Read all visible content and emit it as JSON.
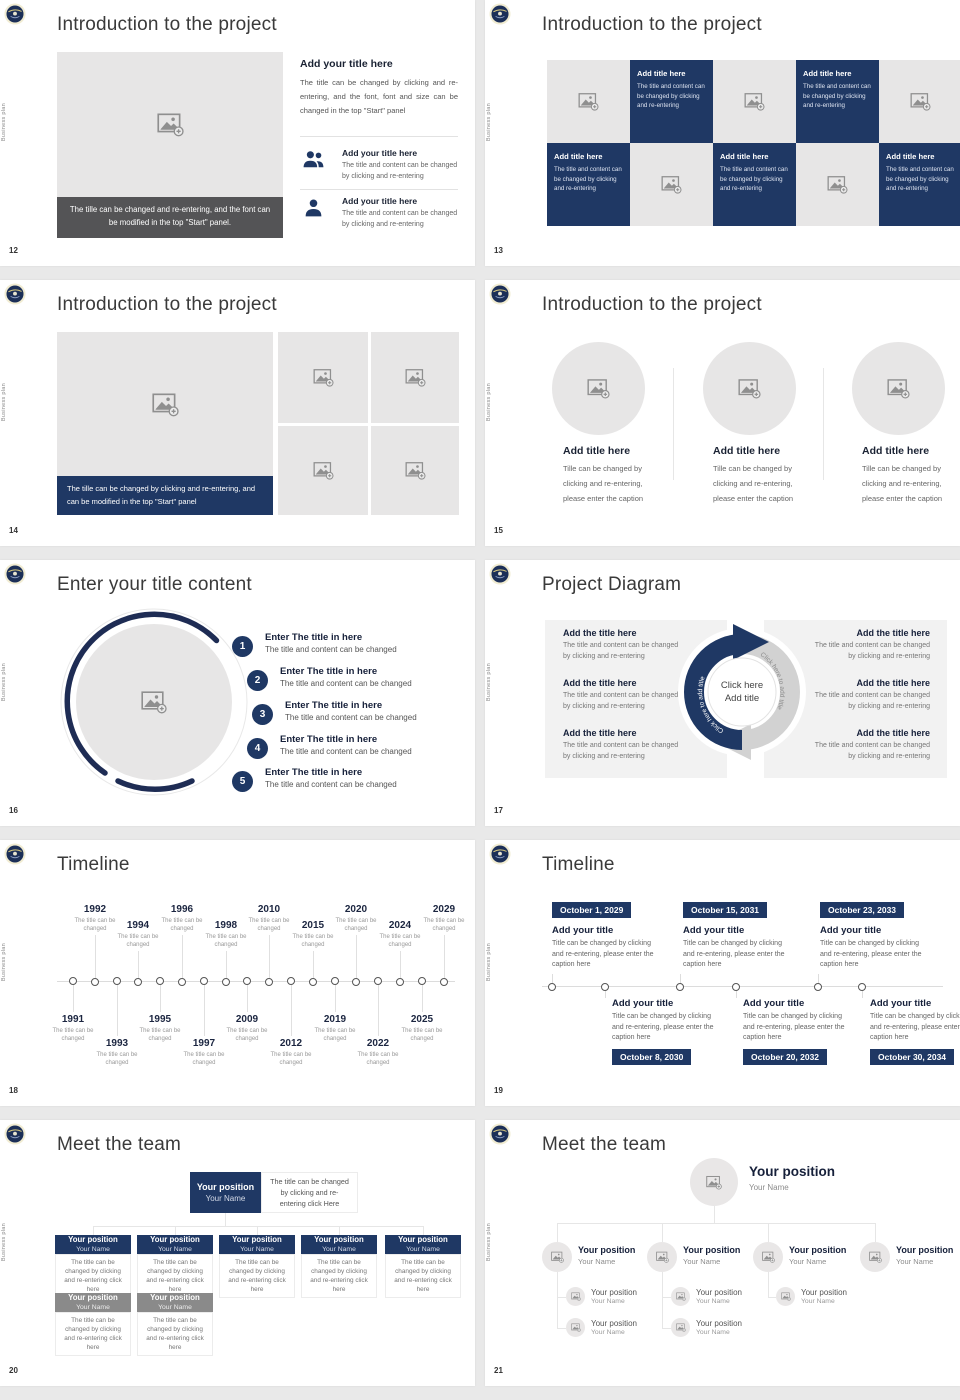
{
  "chrome": {
    "sidebar_label": "Business plan"
  },
  "slides": {
    "s12": {
      "number": "12",
      "title": "Introduction to the project",
      "image_caption": "The tille can be changed and re-entering, and the font can be modified in the top \"Start\" panel.",
      "heading": "Add your title here",
      "body": "The title can be changed by clicking and re-entering, and the font, font and size can be changed in the top \"Start\" panel",
      "items": [
        {
          "heading": "Add your title here",
          "body": "The title and content can be changed by clicking and re-entering"
        },
        {
          "heading": "Add your title here",
          "body": "The title and content can be changed by clicking and re-entering"
        }
      ]
    },
    "s13": {
      "number": "13",
      "title": "Introduction to the project",
      "cell_heading": "Add title here",
      "cell_body": "The title and content can be changed by clicking and re-entering"
    },
    "s14": {
      "number": "14",
      "title": "Introduction to the project",
      "image_caption": "The tille can be changed by clicking and re-entering, and can be modified in the top \"Start\" panel"
    },
    "s15": {
      "number": "15",
      "title": "Introduction to the project",
      "heading": "Add title here",
      "body": "Tille can be changed by clicking and re-entering, please enter the caption"
    },
    "s16": {
      "number": "16",
      "title": "Enter your title content",
      "heading": "Enter The title in here",
      "body": "The title and content can be changed",
      "numbers": [
        "1",
        "2",
        "3",
        "4",
        "5"
      ]
    },
    "s17": {
      "number": "17",
      "title": "Project Diagram",
      "heading": "Add the title here",
      "body": "The title and content can be changed by clicking and re-entering",
      "center_top": "Click here",
      "center_bottom": "Add title",
      "arc_label": "Click here to add title"
    },
    "s18": {
      "number": "18",
      "title": "Timeline",
      "note": "The title can be changed",
      "years": [
        "1991",
        "1992",
        "1993",
        "1994",
        "1995",
        "1996",
        "1997",
        "1998",
        "2009",
        "2010",
        "2012",
        "2015",
        "2019",
        "2020",
        "2022",
        "2024",
        "2025",
        "2029"
      ]
    },
    "s19": {
      "number": "19",
      "title": "Timeline",
      "heading": "Add your title",
      "body": "Title can be changed by clicking and re-entering, please enter the caption here",
      "dates": [
        "October 1, 2029",
        "October 8, 2030",
        "October 15, 2031",
        "October 20, 2032",
        "October 23, 2033",
        "October 30, 2034"
      ]
    },
    "s20": {
      "number": "20",
      "title": "Meet the team",
      "position": "Your position",
      "name": "Your Name",
      "root_note": "The title can be changed by clicking and re-entering click Here",
      "note": "The title can be changed by clicking and re-entering click here"
    },
    "s21": {
      "number": "21",
      "title": "Meet the team",
      "position": "Your position",
      "name": "Your Name"
    }
  }
}
